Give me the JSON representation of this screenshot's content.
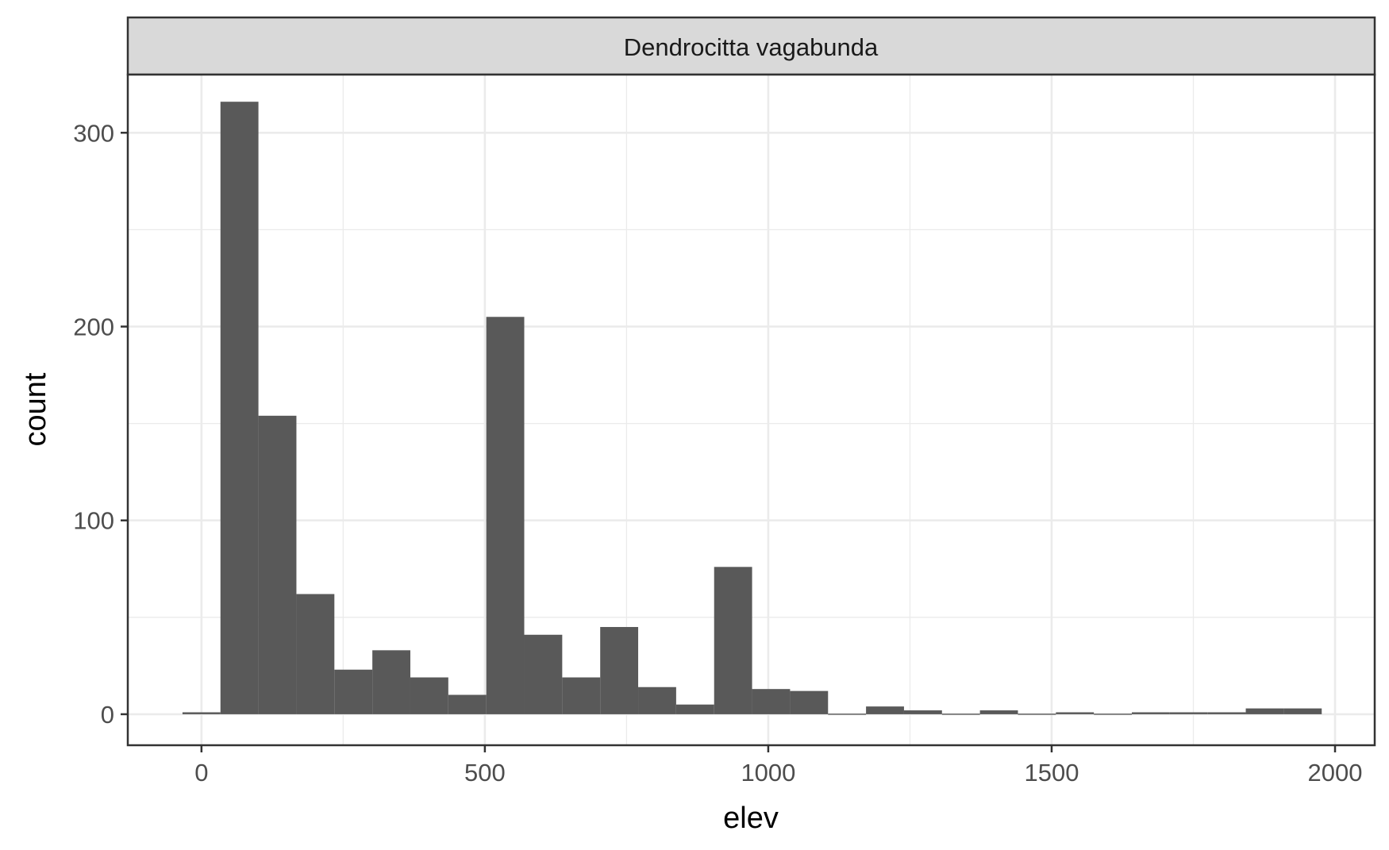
{
  "chart_data": {
    "type": "bar",
    "subtype": "histogram",
    "facet_label": "Dendrocitta vagabunda",
    "xlabel": "elev",
    "ylabel": "count",
    "xlim": [
      -130,
      2070
    ],
    "ylim": [
      -16,
      330
    ],
    "x_ticks": [
      0,
      500,
      1000,
      1500,
      2000
    ],
    "x_tick_labels": [
      "0",
      "500",
      "1000",
      "1500",
      "2000"
    ],
    "y_ticks": [
      0,
      100,
      200,
      300
    ],
    "y_tick_labels": [
      "0",
      "100",
      "200",
      "300"
    ],
    "grid": true,
    "bar_color": "#595959",
    "bins": [
      {
        "x0": -33.5,
        "x1": 33.5,
        "count": 1
      },
      {
        "x0": 33.5,
        "x1": 100.5,
        "count": 316
      },
      {
        "x0": 100.5,
        "x1": 167.5,
        "count": 154
      },
      {
        "x0": 167.5,
        "x1": 234.5,
        "count": 62
      },
      {
        "x0": 234.5,
        "x1": 301.5,
        "count": 23
      },
      {
        "x0": 301.5,
        "x1": 368.5,
        "count": 33
      },
      {
        "x0": 368.5,
        "x1": 435.5,
        "count": 19
      },
      {
        "x0": 435.5,
        "x1": 502.5,
        "count": 10
      },
      {
        "x0": 502.5,
        "x1": 569.5,
        "count": 205
      },
      {
        "x0": 569.5,
        "x1": 636.5,
        "count": 41
      },
      {
        "x0": 636.5,
        "x1": 703.5,
        "count": 19
      },
      {
        "x0": 703.5,
        "x1": 770.5,
        "count": 45
      },
      {
        "x0": 770.5,
        "x1": 837.5,
        "count": 14
      },
      {
        "x0": 837.5,
        "x1": 904.5,
        "count": 5
      },
      {
        "x0": 904.5,
        "x1": 971.5,
        "count": 76
      },
      {
        "x0": 971.5,
        "x1": 1038.5,
        "count": 13
      },
      {
        "x0": 1038.5,
        "x1": 1105.5,
        "count": 12
      },
      {
        "x0": 1105.5,
        "x1": 1172.5,
        "count": 0
      },
      {
        "x0": 1172.5,
        "x1": 1239.5,
        "count": 4
      },
      {
        "x0": 1239.5,
        "x1": 1306.5,
        "count": 2
      },
      {
        "x0": 1306.5,
        "x1": 1373.5,
        "count": 0
      },
      {
        "x0": 1373.5,
        "x1": 1440.5,
        "count": 2
      },
      {
        "x0": 1440.5,
        "x1": 1507.5,
        "count": 0
      },
      {
        "x0": 1507.5,
        "x1": 1574.5,
        "count": 1
      },
      {
        "x0": 1574.5,
        "x1": 1641.5,
        "count": 0
      },
      {
        "x0": 1641.5,
        "x1": 1708.5,
        "count": 1
      },
      {
        "x0": 1708.5,
        "x1": 1775.5,
        "count": 1
      },
      {
        "x0": 1775.5,
        "x1": 1842.5,
        "count": 1
      },
      {
        "x0": 1842.5,
        "x1": 1909.5,
        "count": 3
      },
      {
        "x0": 1909.5,
        "x1": 1976.5,
        "count": 3
      }
    ]
  }
}
